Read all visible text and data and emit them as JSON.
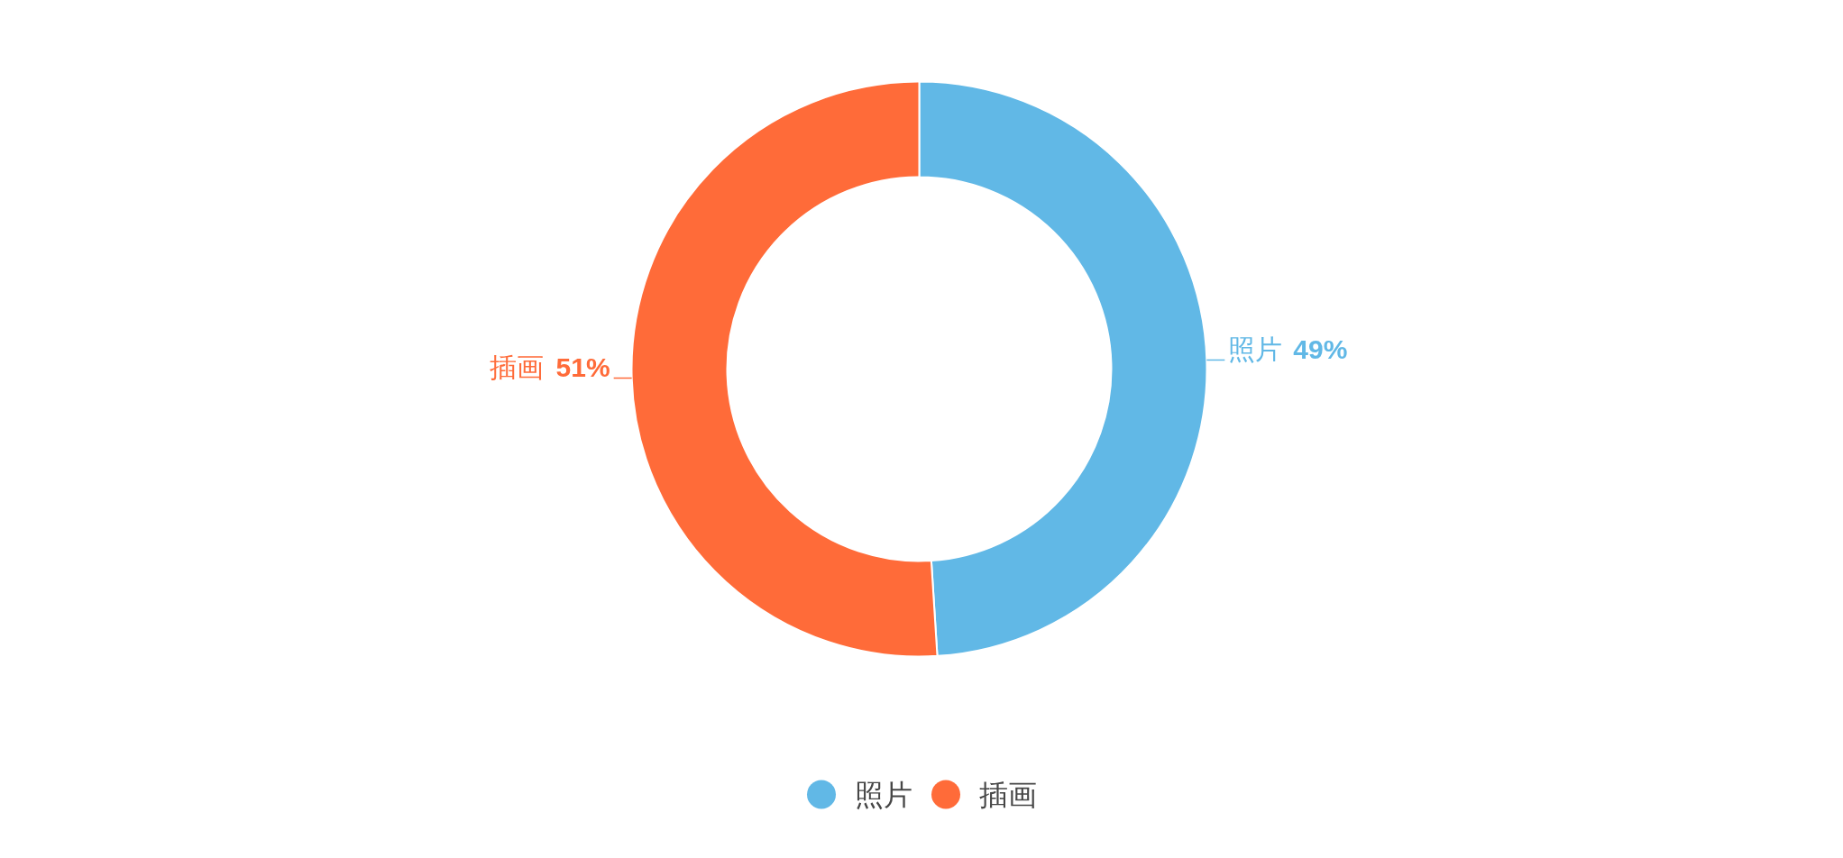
{
  "chart_data": {
    "type": "donut",
    "categories": [
      "照片",
      "插画"
    ],
    "values": [
      49,
      51
    ],
    "colors": [
      "#61b8e6",
      "#ff6b39"
    ],
    "value_labels": [
      "49%",
      "51%"
    ],
    "legend": "bottom"
  }
}
